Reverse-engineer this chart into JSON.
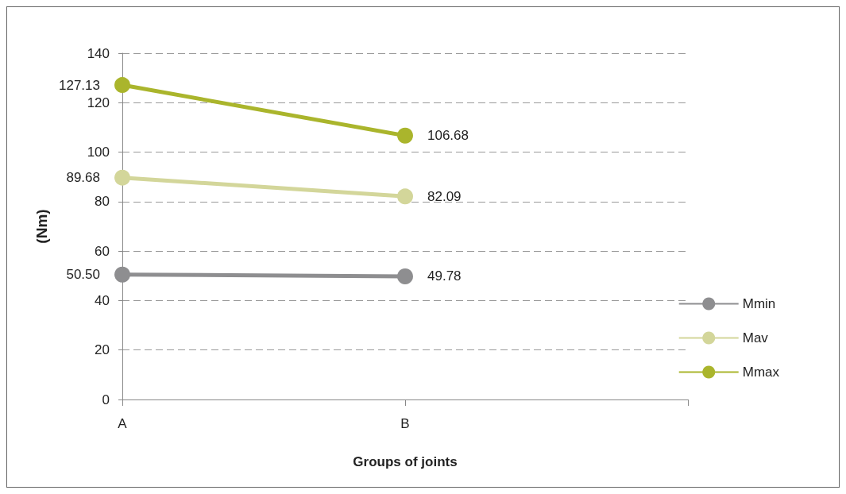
{
  "chart_data": {
    "type": "line",
    "xlabel": "Groups of joints",
    "ylabel": "(Nm)",
    "categories": [
      "A",
      "B"
    ],
    "series": [
      {
        "name": "Mmin",
        "color": "#8e8e90",
        "values": [
          50.5,
          49.78
        ],
        "value_labels": [
          "50.50",
          "49.78"
        ]
      },
      {
        "name": "Mav",
        "color": "#d3d69a",
        "values": [
          89.68,
          82.09
        ],
        "value_labels": [
          "89.68",
          "82.09"
        ]
      },
      {
        "name": "Mmax",
        "color": "#aab52c",
        "values": [
          127.13,
          106.68
        ],
        "value_labels": [
          "127.13",
          "106.68"
        ]
      }
    ],
    "ylim": [
      0,
      140
    ],
    "yticks": [
      0,
      20,
      40,
      60,
      80,
      100,
      120,
      140
    ],
    "grid": "y",
    "legend": "right",
    "marker": "circle",
    "line_style": "solid"
  }
}
